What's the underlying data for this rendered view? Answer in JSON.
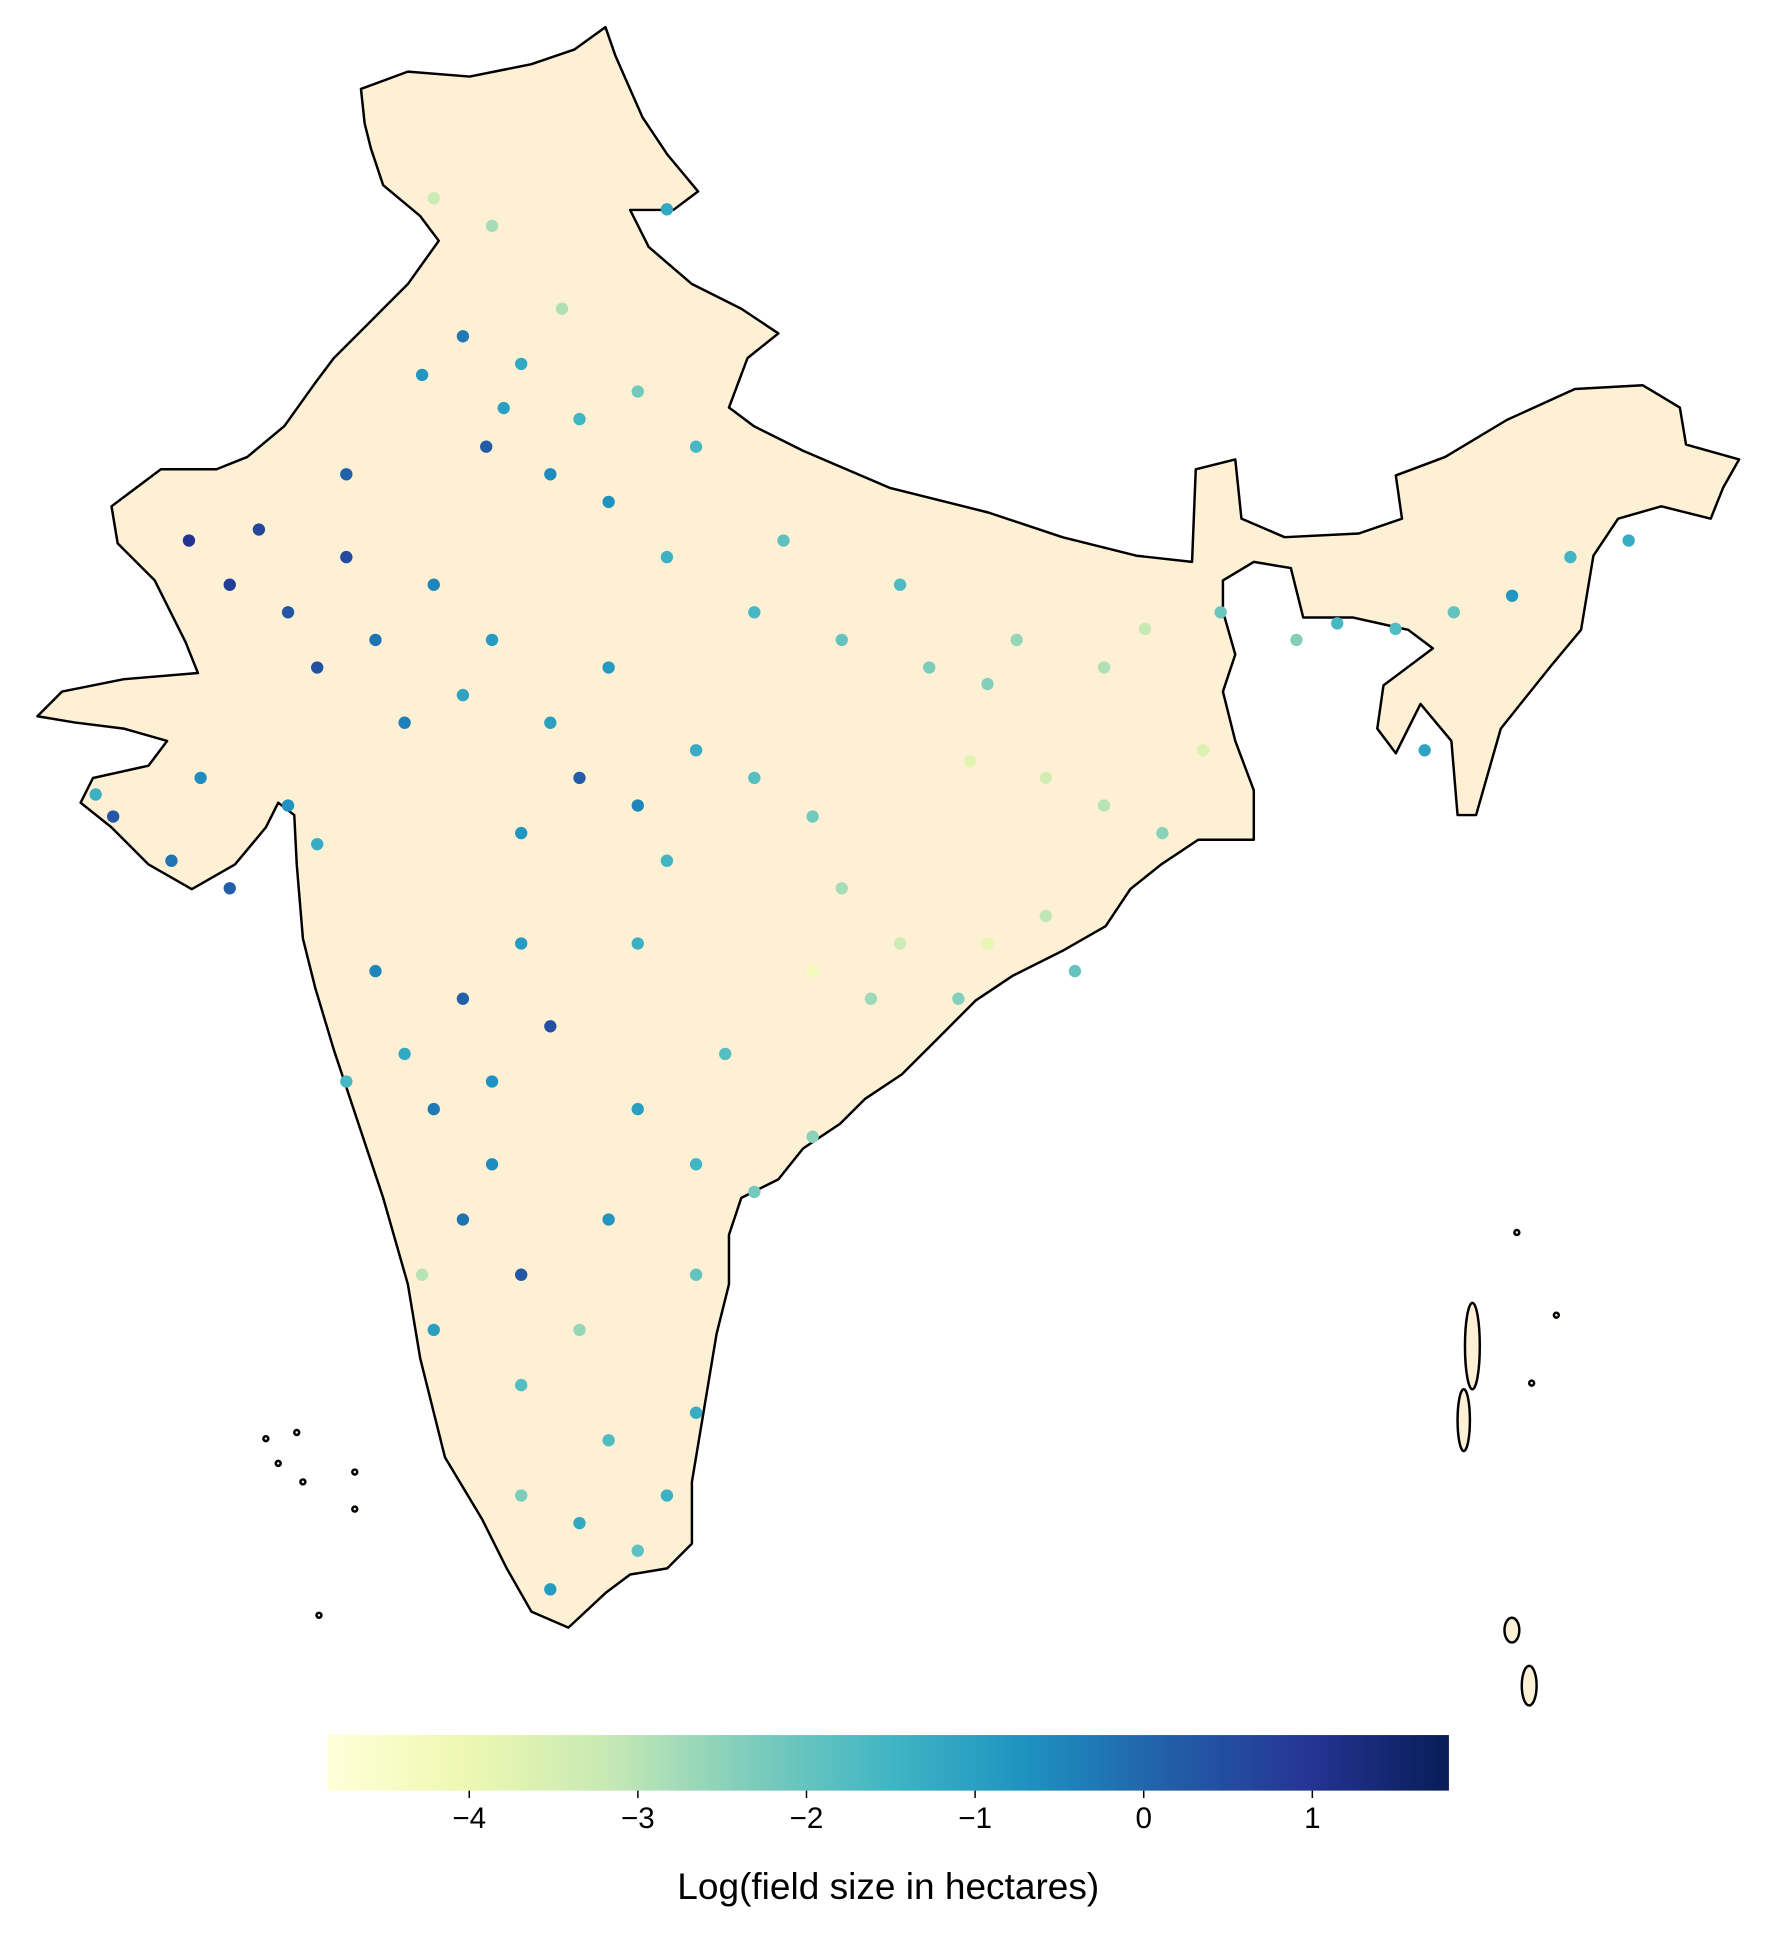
{
  "chart_data": {
    "type": "map-scatter",
    "colorbar_label": "Log(field size in hectares)",
    "colormap": [
      "#ffffd9",
      "#edf8b1",
      "#c7e9b4",
      "#7fcdbb",
      "#41b6c4",
      "#1d91c0",
      "#225ea8",
      "#253494",
      "#081d58"
    ],
    "clim": [
      -4.84,
      1.81
    ],
    "cticks": [
      {
        "value": -4,
        "label": "−4"
      },
      {
        "value": -3,
        "label": "−3"
      },
      {
        "value": -2,
        "label": "−2"
      },
      {
        "value": -1,
        "label": "−1"
      },
      0,
      1
    ],
    "lon": [
      75.5,
      74.8,
      76.2,
      75.9,
      77.0,
      76.5,
      77.5,
      71.5,
      72.5,
      73.5,
      74.0,
      73.0,
      75.0,
      76.0,
      74.5,
      72.0,
      73.5,
      75.5,
      70.8,
      69.5,
      70.5,
      71.5,
      72.5,
      73.0,
      71.0,
      69.2,
      77.5,
      78.5,
      79.5,
      76.5,
      80.5,
      77.0,
      79.0,
      81.5,
      78.0,
      79.0,
      80.5,
      82.0,
      83.0,
      78.0,
      81.0,
      83.5,
      85.0,
      86.5,
      84.5,
      87.2,
      85.5,
      86.5,
      87.5,
      88.2,
      84.2,
      88.5,
      82.0,
      83.0,
      84.5,
      85.5,
      82.5,
      84.0,
      86.0,
      81.5,
      74.0,
      75.5,
      76.5,
      74.5,
      77.0,
      78.5,
      73.5,
      75.0,
      76.0,
      78.5,
      79.5,
      80.5,
      81.5,
      78.0,
      79.5,
      80.0,
      75.5,
      76.5,
      75.0,
      76.5,
      77.5,
      76.0,
      74.8,
      78.0,
      79.0,
      77.5,
      76.5,
      78.5,
      79.5,
      77.0,
      91.5,
      92.5,
      93.5,
      94.5,
      95.5,
      90.5,
      92.0,
      89.8,
      77.2,
      78.5,
      76.0,
      79.5,
      75.0,
      79.0
    ],
    "lat": [
      31.5,
      30.8,
      30.2,
      29.5,
      29.0,
      31.0,
      30.0,
      27.0,
      26.5,
      27.5,
      26.0,
      25.5,
      27.0,
      26.0,
      24.5,
      28.0,
      29.0,
      25.0,
      27.8,
      22.8,
      22.0,
      21.5,
      23.0,
      22.3,
      23.5,
      23.2,
      23.5,
      23.0,
      24.0,
      22.5,
      23.5,
      24.5,
      22.0,
      22.8,
      25.5,
      27.5,
      26.5,
      26.0,
      27.0,
      28.5,
      27.8,
      25.5,
      26.0,
      25.5,
      25.2,
      26.2,
      23.5,
      23.0,
      22.5,
      24.0,
      23.8,
      26.5,
      21.5,
      20.5,
      20.5,
      21.0,
      19.5,
      19.5,
      20.0,
      20.0,
      20.0,
      19.5,
      20.5,
      18.5,
      19.0,
      20.5,
      18.0,
      17.5,
      18.0,
      17.5,
      16.5,
      16.0,
      17.0,
      15.5,
      14.5,
      18.5,
      15.5,
      14.5,
      13.5,
      12.5,
      13.5,
      16.5,
      14.5,
      11.5,
      10.5,
      10.0,
      10.5,
      9.5,
      12.0,
      8.8,
      26.2,
      26.5,
      26.8,
      27.5,
      27.8,
      26.3,
      24.0,
      26.0,
      32.0,
      30.5,
      33.5,
      29.5,
      34.0,
      33.8
    ],
    "values": [
      -0.3,
      -0.8,
      -1.0,
      0.2,
      -0.6,
      -1.2,
      -1.5,
      0.8,
      0.3,
      0.5,
      -0.2,
      0.4,
      -0.5,
      -0.9,
      -0.4,
      0.6,
      0.1,
      -1.1,
      1.0,
      0.3,
      -0.2,
      0.1,
      -0.7,
      -1.3,
      -0.6,
      -1.4,
      0.2,
      -0.5,
      -1.3,
      -0.8,
      -1.8,
      -1.0,
      -1.5,
      -2.2,
      -0.9,
      -1.4,
      -1.6,
      -2.0,
      -1.7,
      -0.7,
      -1.9,
      -2.3,
      -2.6,
      -2.9,
      -2.4,
      -3.2,
      -3.4,
      -3.0,
      -2.5,
      -3.6,
      -3.8,
      -2.1,
      -2.8,
      -3.3,
      -3.9,
      -3.1,
      -2.7,
      -2.4,
      -2.0,
      -4.2,
      -0.5,
      0.1,
      -0.9,
      -1.2,
      0.4,
      -1.4,
      -1.6,
      -0.3,
      -0.7,
      -1.0,
      -1.5,
      -2.2,
      -2.5,
      -0.8,
      -2.0,
      -1.8,
      -0.2,
      0.3,
      -1.0,
      -1.8,
      -2.6,
      -0.6,
      -3.0,
      -1.7,
      -1.4,
      -1.2,
      -2.3,
      -1.9,
      -1.3,
      -0.9,
      -1.7,
      -2.0,
      -0.8,
      -1.5,
      -1.3,
      -1.6,
      -1.1,
      -2.4,
      -2.9,
      -2.2,
      -2.8,
      -1.6,
      -3.3,
      -1.2
    ]
  }
}
